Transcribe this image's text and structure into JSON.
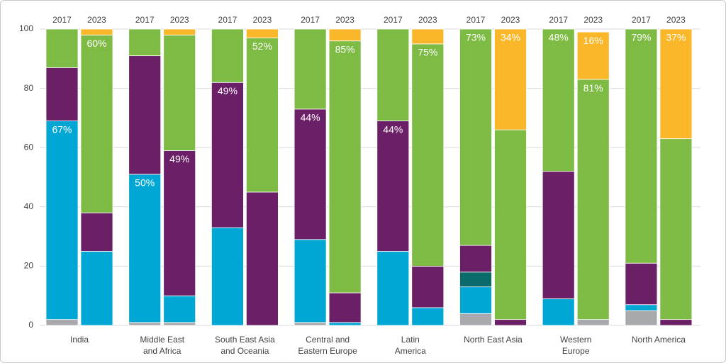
{
  "chart_data": {
    "type": "stacked-bar",
    "categories": [
      "India",
      "Middle East\nand Africa",
      "South East Asia\nand Oceania",
      "Central and\nEastern Europe",
      "Latin\nAmerica",
      "North East Asia",
      "Western\nEurope",
      "North America"
    ],
    "groups": [
      "2017",
      "2023"
    ],
    "ylim": [
      0,
      100
    ],
    "yticks": [
      0,
      20,
      40,
      60,
      80,
      100
    ],
    "grid": true,
    "series": [
      {
        "color": "#a7a9ac",
        "values": [
          [
            2,
            0
          ],
          [
            1,
            1
          ],
          [
            0,
            0
          ],
          [
            1,
            0
          ],
          [
            0,
            0
          ],
          [
            4,
            0
          ],
          [
            0,
            2
          ],
          [
            5,
            0
          ]
        ]
      },
      {
        "color": "#00a7d4",
        "values": [
          [
            67,
            25
          ],
          [
            50,
            9
          ],
          [
            33,
            0
          ],
          [
            28,
            1
          ],
          [
            25,
            6
          ],
          [
            9,
            0
          ],
          [
            9,
            0
          ],
          [
            2,
            0
          ]
        ],
        "value_labels": [
          [
            "67%",
            null
          ],
          [
            "50%",
            null
          ],
          [
            null,
            null
          ],
          [
            null,
            null
          ],
          [
            null,
            null
          ],
          [
            null,
            null
          ],
          [
            null,
            null
          ],
          [
            null,
            null
          ]
        ]
      },
      {
        "color": "#0b6b6b",
        "values": [
          [
            0,
            0
          ],
          [
            0,
            0
          ],
          [
            0,
            0
          ],
          [
            0,
            0
          ],
          [
            0,
            0
          ],
          [
            5,
            0
          ],
          [
            0,
            0
          ],
          [
            0,
            0
          ]
        ]
      },
      {
        "color": "#6b1f67",
        "values": [
          [
            18,
            13
          ],
          [
            40,
            49
          ],
          [
            49,
            45
          ],
          [
            44,
            10
          ],
          [
            44,
            14
          ],
          [
            9,
            2
          ],
          [
            43,
            0
          ],
          [
            14,
            2
          ]
        ],
        "value_labels": [
          [
            null,
            null
          ],
          [
            null,
            "49%"
          ],
          [
            "49%",
            null
          ],
          [
            "44%",
            null
          ],
          [
            "44%",
            null
          ],
          [
            null,
            null
          ],
          [
            null,
            null
          ],
          [
            null,
            null
          ]
        ]
      },
      {
        "color": "#7ebb44",
        "values": [
          [
            13,
            60
          ],
          [
            9,
            39
          ],
          [
            18,
            52
          ],
          [
            27,
            85
          ],
          [
            31,
            75
          ],
          [
            73,
            64
          ],
          [
            48,
            81
          ],
          [
            79,
            61
          ]
        ],
        "value_labels": [
          [
            null,
            "60%"
          ],
          [
            null,
            null
          ],
          [
            null,
            "52%"
          ],
          [
            null,
            "85%"
          ],
          [
            null,
            "75%"
          ],
          [
            "73%",
            null
          ],
          [
            "48%",
            "81%"
          ],
          [
            "79%",
            null
          ]
        ]
      },
      {
        "color": "#fbb72a",
        "values": [
          [
            0,
            2
          ],
          [
            0,
            2
          ],
          [
            0,
            3
          ],
          [
            0,
            4
          ],
          [
            0,
            5
          ],
          [
            0,
            34
          ],
          [
            0,
            16
          ],
          [
            0,
            37
          ]
        ],
        "value_labels": [
          [
            null,
            null
          ],
          [
            null,
            null
          ],
          [
            null,
            null
          ],
          [
            null,
            null
          ],
          [
            null,
            null
          ],
          [
            null,
            "34%"
          ],
          [
            null,
            "16%"
          ],
          [
            null,
            "37%"
          ]
        ]
      }
    ]
  }
}
